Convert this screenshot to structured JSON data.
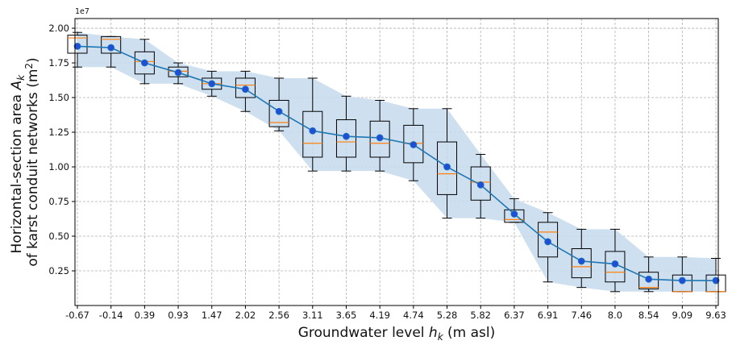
{
  "chart_data": {
    "type": "box",
    "title": "",
    "xlabel": "Groundwater level h_k (m asl)",
    "ylabel_line1": "Horizontal-section area A_k",
    "ylabel_line2": "of karst conduit networks (m²)",
    "y_exponent_label": "1e7",
    "y_tick_values": [
      0.25,
      0.5,
      0.75,
      1.0,
      1.25,
      1.5,
      1.75,
      2.0
    ],
    "y_tick_labels": [
      "0.25",
      "0.50",
      "0.75",
      "1.00",
      "1.25",
      "1.50",
      "1.75",
      "2.00"
    ],
    "ylim": [
      0.0,
      2.07
    ],
    "grid": true,
    "colors": {
      "band": "#c6dbed",
      "mean_line": "#1f77b4",
      "mean_marker": "#1f4fd6",
      "median": "#ff7f0e",
      "box": "#000000",
      "grid": "#b0b0b0"
    },
    "categories": [
      "-0.67",
      "-0.14",
      "0.39",
      "0.93",
      "1.47",
      "2.02",
      "2.56",
      "3.11",
      "3.65",
      "4.19",
      "4.74",
      "5.28",
      "5.82",
      "6.37",
      "6.91",
      "7.46",
      "8.0",
      "8.54",
      "9.09",
      "9.63"
    ],
    "series": [
      {
        "stats": [
          {
            "wlo": 1.72,
            "q1": 1.82,
            "med": 1.93,
            "q3": 1.95,
            "whi": 1.97
          },
          {
            "wlo": 1.72,
            "q1": 1.82,
            "med": 1.92,
            "q3": 1.94,
            "whi": 1.94
          },
          {
            "wlo": 1.6,
            "q1": 1.67,
            "med": 1.76,
            "q3": 1.83,
            "whi": 1.92
          },
          {
            "wlo": 1.6,
            "q1": 1.65,
            "med": 1.69,
            "q3": 1.72,
            "whi": 1.75
          },
          {
            "wlo": 1.51,
            "q1": 1.56,
            "med": 1.6,
            "q3": 1.64,
            "whi": 1.69
          },
          {
            "wlo": 1.4,
            "q1": 1.5,
            "med": 1.59,
            "q3": 1.64,
            "whi": 1.69
          },
          {
            "wlo": 1.26,
            "q1": 1.29,
            "med": 1.32,
            "q3": 1.48,
            "whi": 1.64
          },
          {
            "wlo": 0.97,
            "q1": 1.07,
            "med": 1.17,
            "q3": 1.4,
            "whi": 1.64
          },
          {
            "wlo": 0.97,
            "q1": 1.07,
            "med": 1.18,
            "q3": 1.34,
            "whi": 1.51
          },
          {
            "wlo": 0.97,
            "q1": 1.07,
            "med": 1.17,
            "q3": 1.33,
            "whi": 1.48
          },
          {
            "wlo": 0.9,
            "q1": 1.03,
            "med": 1.17,
            "q3": 1.3,
            "whi": 1.42
          },
          {
            "wlo": 0.63,
            "q1": 0.8,
            "med": 0.95,
            "q3": 1.18,
            "whi": 1.42
          },
          {
            "wlo": 0.63,
            "q1": 0.76,
            "med": 0.89,
            "q3": 1.0,
            "whi": 1.09
          },
          {
            "wlo": 0.6,
            "q1": 0.6,
            "med": 0.62,
            "q3": 0.69,
            "whi": 0.77
          },
          {
            "wlo": 0.17,
            "q1": 0.35,
            "med": 0.53,
            "q3": 0.6,
            "whi": 0.67
          },
          {
            "wlo": 0.13,
            "q1": 0.2,
            "med": 0.28,
            "q3": 0.41,
            "whi": 0.55
          },
          {
            "wlo": 0.1,
            "q1": 0.17,
            "med": 0.24,
            "q3": 0.39,
            "whi": 0.55
          },
          {
            "wlo": 0.1,
            "q1": 0.12,
            "med": 0.13,
            "q3": 0.24,
            "whi": 0.35
          },
          {
            "wlo": 0.1,
            "q1": 0.1,
            "med": 0.1,
            "q3": 0.22,
            "whi": 0.35
          },
          {
            "wlo": 0.1,
            "q1": 0.1,
            "med": 0.1,
            "q3": 0.22,
            "whi": 0.34
          }
        ]
      },
      {
        "type": "line",
        "values": [
          1.87,
          1.86,
          1.75,
          1.68,
          1.6,
          1.56,
          1.4,
          1.26,
          1.22,
          1.21,
          1.16,
          1.0,
          0.87,
          0.66,
          0.46,
          0.32,
          0.3,
          0.19,
          0.18,
          0.18
        ]
      },
      {
        "type": "area",
        "lower": [
          1.72,
          1.72,
          1.6,
          1.6,
          1.51,
          1.4,
          1.26,
          0.97,
          0.97,
          0.97,
          0.9,
          0.63,
          0.63,
          0.6,
          0.17,
          0.13,
          0.1,
          0.1,
          0.1,
          0.1
        ],
        "upper": [
          1.97,
          1.94,
          1.92,
          1.75,
          1.69,
          1.69,
          1.64,
          1.64,
          1.51,
          1.48,
          1.42,
          1.42,
          1.09,
          0.77,
          0.67,
          0.55,
          0.55,
          0.35,
          0.35,
          0.34
        ]
      }
    ]
  }
}
